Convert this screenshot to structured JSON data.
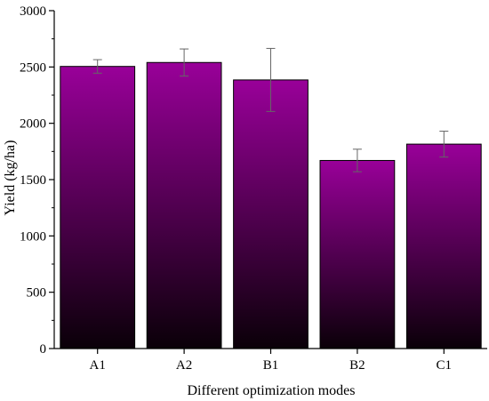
{
  "chart_data": {
    "type": "bar",
    "title": "",
    "xlabel": "Different optimization modes",
    "ylabel": "Yield (kg/ha)",
    "categories": [
      "A1",
      "A2",
      "B1",
      "B2",
      "C1"
    ],
    "values": [
      2505,
      2540,
      2385,
      1670,
      1815
    ],
    "errors": [
      60,
      120,
      280,
      100,
      115
    ],
    "ylim": [
      0,
      3000
    ],
    "yticks": [
      0,
      500,
      1000,
      1500,
      2000,
      2500,
      3000
    ],
    "ytick_labels": [
      "0",
      "500",
      "1000",
      "1500",
      "2000",
      "2500",
      "3000"
    ],
    "grid": false,
    "legend": "none",
    "colors": {
      "bar_top": "#990099",
      "bar_bottom": "#0a0008",
      "bar_edge": "#000000",
      "error_bar": "#666666",
      "axis": "#000000"
    }
  }
}
